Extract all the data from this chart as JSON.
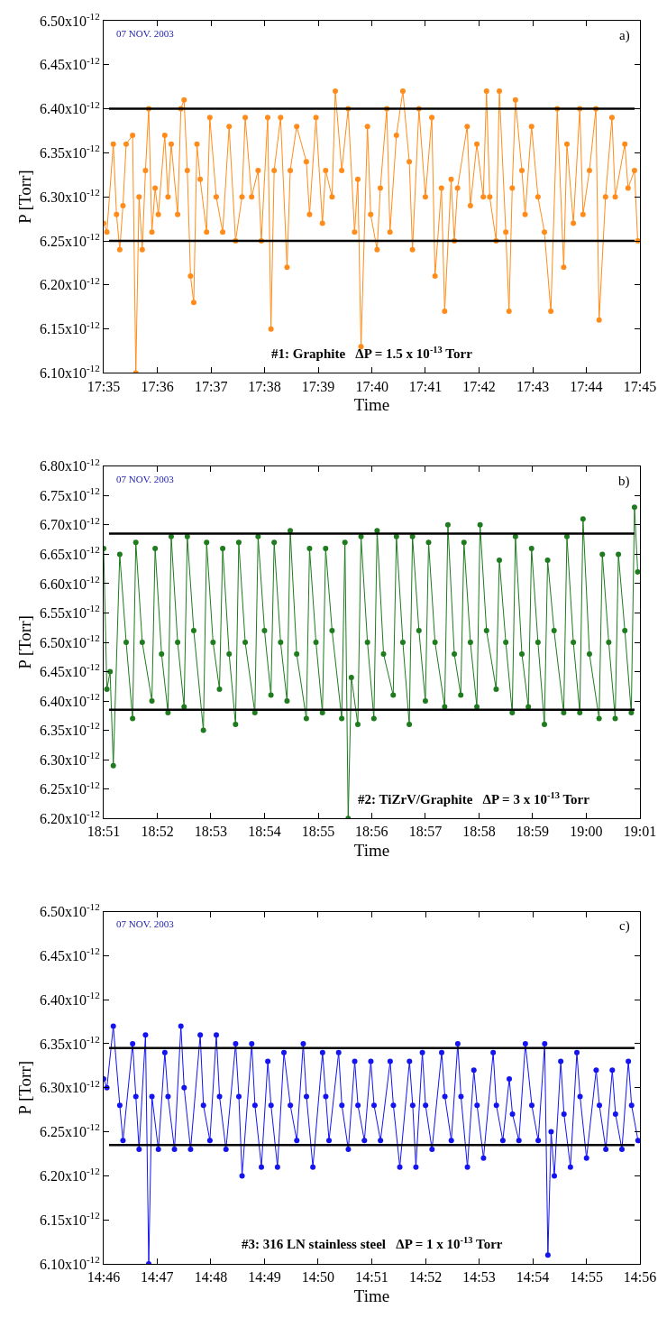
{
  "chart_data": [
    {
      "type": "line",
      "xlabel": "Time",
      "ylabel": "P [Torr]",
      "marker": "circle",
      "line_style": "solid",
      "annotations": [
        "07 NOV. 2003",
        "a)",
        "#1: Graphite   ΔP = 1.5 x 10$^{-13}$ Torr"
      ],
      "xlim": [
        17.5833,
        17.75
      ],
      "xticks": [
        {
          "value": 17.5833,
          "label": "17:35"
        },
        {
          "value": 17.6,
          "label": "17:36"
        },
        {
          "value": 17.6167,
          "label": "17:37"
        },
        {
          "value": 17.6333,
          "label": "17:38"
        },
        {
          "value": 17.65,
          "label": "17:39"
        },
        {
          "value": 17.6667,
          "label": "17:40"
        },
        {
          "value": 17.6833,
          "label": "17:41"
        },
        {
          "value": 17.7,
          "label": "17:42"
        },
        {
          "value": 17.7167,
          "label": "17:43"
        },
        {
          "value": 17.7333,
          "label": "17:44"
        },
        {
          "value": 17.75,
          "label": "17:45"
        }
      ],
      "ylim": [
        6.1e-12,
        6.5e-12
      ],
      "yticks": [
        {
          "value": 6.1e-12,
          "label": "6.10x10$^{-12}$"
        },
        {
          "value": 6.15e-12,
          "label": "6.15x10$^{-12}$"
        },
        {
          "value": 6.2e-12,
          "label": "6.20x10$^{-12}$"
        },
        {
          "value": 6.25e-12,
          "label": "6.25x10$^{-12}$"
        },
        {
          "value": 6.3e-12,
          "label": "6.30x10$^{-12}$"
        },
        {
          "value": 6.35e-12,
          "label": "6.35x10$^{-12}$"
        },
        {
          "value": 6.4e-12,
          "label": "6.40x10$^{-12}$"
        },
        {
          "value": 6.45e-12,
          "label": "6.45x10$^{-12}$"
        },
        {
          "value": 6.5e-12,
          "label": "6.50x10$^{-12}$"
        }
      ],
      "ref_lines": [
        {
          "axis": "y",
          "value": 6.4e-12,
          "color": "#000000"
        },
        {
          "axis": "y",
          "value": 6.25e-12,
          "color": "#000000"
        }
      ],
      "series": [
        {
          "color": "#ff8c1a",
          "x": [
            17.5833,
            17.5843,
            17.5863,
            17.5873,
            17.5883,
            17.5893,
            17.5903,
            17.5923,
            17.5933,
            17.5943,
            17.5953,
            17.5963,
            17.5973,
            17.5983,
            17.5993,
            17.6003,
            17.6023,
            17.6033,
            17.6043,
            17.6063,
            17.6073,
            17.6083,
            17.6093,
            17.6103,
            17.6113,
            17.6123,
            17.6133,
            17.6153,
            17.6163,
            17.6183,
            17.6203,
            17.6223,
            17.6243,
            17.6263,
            17.6273,
            17.6293,
            17.6313,
            17.6323,
            17.6343,
            17.6353,
            17.6363,
            17.6383,
            17.6403,
            17.6413,
            17.6433,
            17.6463,
            17.6473,
            17.6493,
            17.6513,
            17.6523,
            17.6543,
            17.6553,
            17.6573,
            17.6593,
            17.6613,
            17.6623,
            17.6633,
            17.6653,
            17.6663,
            17.6683,
            17.6693,
            17.6713,
            17.6723,
            17.6743,
            17.6763,
            17.6783,
            17.6793,
            17.6813,
            17.6833,
            17.6853,
            17.6863,
            17.6883,
            17.6893,
            17.6913,
            17.6923,
            17.6933,
            17.6963,
            17.6973,
            17.6993,
            17.7013,
            17.7023,
            17.7033,
            17.7053,
            17.7063,
            17.7083,
            17.7093,
            17.7103,
            17.7113,
            17.7133,
            17.7143,
            17.7163,
            17.7183,
            17.7203,
            17.7223,
            17.7243,
            17.7263,
            17.7273,
            17.7293,
            17.7313,
            17.7323,
            17.7343,
            17.7363,
            17.7373,
            17.7393,
            17.7413,
            17.7423,
            17.7453,
            17.7463,
            17.7483,
            17.7493
          ],
          "values": [
            6.27e-12,
            6.26e-12,
            6.36e-12,
            6.28e-12,
            6.24e-12,
            6.29e-12,
            6.36e-12,
            6.37e-12,
            6.1e-12,
            6.3e-12,
            6.24e-12,
            6.33e-12,
            6.4e-12,
            6.26e-12,
            6.31e-12,
            6.28e-12,
            6.37e-12,
            6.3e-12,
            6.36e-12,
            6.28e-12,
            6.4e-12,
            6.41e-12,
            6.33e-12,
            6.21e-12,
            6.18e-12,
            6.36e-12,
            6.32e-12,
            6.26e-12,
            6.39e-12,
            6.3e-12,
            6.26e-12,
            6.38e-12,
            6.25e-12,
            6.3e-12,
            6.39e-12,
            6.3e-12,
            6.33e-12,
            6.25e-12,
            6.39e-12,
            6.15e-12,
            6.33e-12,
            6.39e-12,
            6.22e-12,
            6.33e-12,
            6.38e-12,
            6.34e-12,
            6.28e-12,
            6.39e-12,
            6.27e-12,
            6.33e-12,
            6.3e-12,
            6.42e-12,
            6.33e-12,
            6.4e-12,
            6.26e-12,
            6.32e-12,
            6.13e-12,
            6.38e-12,
            6.28e-12,
            6.24e-12,
            6.31e-12,
            6.4e-12,
            6.26e-12,
            6.37e-12,
            6.42e-12,
            6.34e-12,
            6.24e-12,
            6.4e-12,
            6.3e-12,
            6.39e-12,
            6.21e-12,
            6.31e-12,
            6.17e-12,
            6.32e-12,
            6.25e-12,
            6.31e-12,
            6.38e-12,
            6.29e-12,
            6.36e-12,
            6.3e-12,
            6.42e-12,
            6.3e-12,
            6.25e-12,
            6.42e-12,
            6.26e-12,
            6.17e-12,
            6.31e-12,
            6.41e-12,
            6.33e-12,
            6.28e-12,
            6.38e-12,
            6.3e-12,
            6.26e-12,
            6.17e-12,
            6.4e-12,
            6.22e-12,
            6.36e-12,
            6.27e-12,
            6.4e-12,
            6.28e-12,
            6.33e-12,
            6.4e-12,
            6.16e-12,
            6.3e-12,
            6.39e-12,
            6.3e-12,
            6.36e-12,
            6.31e-12,
            6.33e-12,
            6.25e-12
          ]
        }
      ]
    },
    {
      "type": "line",
      "xlabel": "Time",
      "ylabel": "P [Torr]",
      "marker": "circle",
      "line_style": "solid",
      "annotations": [
        "07 NOV. 2003",
        "b)",
        "#2: TiZrV/Graphite   ΔP = 3 x 10$^{-13}$ Torr"
      ],
      "xlim": [
        18.85,
        19.0167
      ],
      "xticks": [
        {
          "value": 18.85,
          "label": "18:51"
        },
        {
          "value": 18.8667,
          "label": "18:52"
        },
        {
          "value": 18.8833,
          "label": "18:53"
        },
        {
          "value": 18.9,
          "label": "18:54"
        },
        {
          "value": 18.9167,
          "label": "18:55"
        },
        {
          "value": 18.9333,
          "label": "18:56"
        },
        {
          "value": 18.95,
          "label": "18:57"
        },
        {
          "value": 18.9667,
          "label": "18:58"
        },
        {
          "value": 18.9833,
          "label": "18:59"
        },
        {
          "value": 19.0,
          "label": "19:00"
        },
        {
          "value": 19.0167,
          "label": "19:01"
        }
      ],
      "ylim": [
        6.2e-12,
        6.8e-12
      ],
      "yticks": [
        {
          "value": 6.2e-12,
          "label": "6.20x10$^{-12}$"
        },
        {
          "value": 6.25e-12,
          "label": "6.25x10$^{-12}$"
        },
        {
          "value": 6.3e-12,
          "label": "6.30x10$^{-12}$"
        },
        {
          "value": 6.35e-12,
          "label": "6.35x10$^{-12}$"
        },
        {
          "value": 6.4e-12,
          "label": "6.40x10$^{-12}$"
        },
        {
          "value": 6.45e-12,
          "label": "6.45x10$^{-12}$"
        },
        {
          "value": 6.5e-12,
          "label": "6.50x10$^{-12}$"
        },
        {
          "value": 6.55e-12,
          "label": "6.55x10$^{-12}$"
        },
        {
          "value": 6.6e-12,
          "label": "6.60x10$^{-12}$"
        },
        {
          "value": 6.65e-12,
          "label": "6.65x10$^{-12}$"
        },
        {
          "value": 6.7e-12,
          "label": "6.70x10$^{-12}$"
        },
        {
          "value": 6.75e-12,
          "label": "6.75x10$^{-12}$"
        },
        {
          "value": 6.8e-12,
          "label": "6.80x10$^{-12}$"
        }
      ],
      "ref_lines": [
        {
          "axis": "y",
          "value": 6.685e-12,
          "color": "#000000"
        },
        {
          "axis": "y",
          "value": 6.385e-12,
          "color": "#000000"
        }
      ],
      "series": [
        {
          "color": "#1e7b1e",
          "x": [
            18.85,
            18.851,
            18.852,
            18.853,
            18.855,
            18.857,
            18.859,
            18.86,
            18.862,
            18.865,
            18.866,
            18.868,
            18.87,
            18.871,
            18.873,
            18.875,
            18.876,
            18.878,
            18.881,
            18.882,
            18.884,
            18.886,
            18.887,
            18.889,
            18.891,
            18.892,
            18.894,
            18.897,
            18.898,
            18.9,
            18.902,
            18.903,
            18.905,
            18.907,
            18.908,
            18.91,
            18.913,
            18.914,
            18.916,
            18.918,
            18.919,
            18.921,
            18.924,
            18.925,
            18.926,
            18.927,
            18.929,
            18.93,
            18.932,
            18.934,
            18.935,
            18.937,
            18.94,
            18.941,
            18.943,
            18.945,
            18.946,
            18.948,
            18.95,
            18.951,
            18.953,
            18.956,
            18.957,
            18.959,
            18.961,
            18.962,
            18.964,
            18.966,
            18.967,
            18.969,
            18.972,
            18.973,
            18.975,
            18.977,
            18.978,
            18.98,
            18.982,
            18.983,
            18.985,
            18.987,
            18.988,
            18.99,
            18.993,
            18.994,
            18.996,
            18.998,
            18.999,
            19.001,
            19.004,
            19.005,
            19.007,
            19.009,
            19.01,
            19.012,
            19.014,
            19.015,
            19.016
          ],
          "values": [
            6.66e-12,
            6.42e-12,
            6.45e-12,
            6.29e-12,
            6.65e-12,
            6.5e-12,
            6.37e-12,
            6.67e-12,
            6.5e-12,
            6.4e-12,
            6.66e-12,
            6.48e-12,
            6.38e-12,
            6.68e-12,
            6.5e-12,
            6.39e-12,
            6.68e-12,
            6.52e-12,
            6.35e-12,
            6.67e-12,
            6.5e-12,
            6.42e-12,
            6.66e-12,
            6.48e-12,
            6.36e-12,
            6.67e-12,
            6.5e-12,
            6.38e-12,
            6.68e-12,
            6.52e-12,
            6.41e-12,
            6.67e-12,
            6.5e-12,
            6.4e-12,
            6.69e-12,
            6.48e-12,
            6.37e-12,
            6.66e-12,
            6.5e-12,
            6.38e-12,
            6.66e-12,
            6.52e-12,
            6.37e-12,
            6.67e-12,
            6.2e-12,
            6.44e-12,
            6.36e-12,
            6.68e-12,
            6.5e-12,
            6.37e-12,
            6.69e-12,
            6.48e-12,
            6.41e-12,
            6.68e-12,
            6.5e-12,
            6.36e-12,
            6.68e-12,
            6.52e-12,
            6.4e-12,
            6.67e-12,
            6.5e-12,
            6.39e-12,
            6.7e-12,
            6.48e-12,
            6.41e-12,
            6.67e-12,
            6.5e-12,
            6.39e-12,
            6.7e-12,
            6.52e-12,
            6.42e-12,
            6.64e-12,
            6.5e-12,
            6.38e-12,
            6.68e-12,
            6.48e-12,
            6.39e-12,
            6.66e-12,
            6.5e-12,
            6.36e-12,
            6.64e-12,
            6.52e-12,
            6.38e-12,
            6.68e-12,
            6.5e-12,
            6.38e-12,
            6.71e-12,
            6.48e-12,
            6.37e-12,
            6.65e-12,
            6.5e-12,
            6.37e-12,
            6.65e-12,
            6.52e-12,
            6.38e-12,
            6.73e-12,
            6.62e-12
          ]
        }
      ]
    },
    {
      "type": "line",
      "xlabel": "Time",
      "ylabel": "P [Torr]",
      "marker": "circle",
      "line_style": "solid",
      "annotations": [
        "07 NOV. 2003",
        "c)",
        "#3: 316 LN stainless steel   ΔP = 1 x 10$^{-13}$ Torr"
      ],
      "xlim": [
        14.7667,
        14.9333
      ],
      "xticks": [
        {
          "value": 14.7667,
          "label": "14:46"
        },
        {
          "value": 14.7833,
          "label": "14:47"
        },
        {
          "value": 14.8,
          "label": "14:48"
        },
        {
          "value": 14.8167,
          "label": "14:49"
        },
        {
          "value": 14.8333,
          "label": "14:50"
        },
        {
          "value": 14.85,
          "label": "14:51"
        },
        {
          "value": 14.8667,
          "label": "14:52"
        },
        {
          "value": 14.8833,
          "label": "14:53"
        },
        {
          "value": 14.9,
          "label": "14:54"
        },
        {
          "value": 14.9167,
          "label": "14:55"
        },
        {
          "value": 14.9333,
          "label": "14:56"
        }
      ],
      "ylim": [
        6.1e-12,
        6.5e-12
      ],
      "yticks": [
        {
          "value": 6.1e-12,
          "label": "6.10x10$^{-12}$"
        },
        {
          "value": 6.15e-12,
          "label": "6.15x10$^{-12}$"
        },
        {
          "value": 6.2e-12,
          "label": "6.20x10$^{-12}$"
        },
        {
          "value": 6.25e-12,
          "label": "6.25x10$^{-12}$"
        },
        {
          "value": 6.3e-12,
          "label": "6.30x10$^{-12}$"
        },
        {
          "value": 6.35e-12,
          "label": "6.35x10$^{-12}$"
        },
        {
          "value": 6.4e-12,
          "label": "6.40x10$^{-12}$"
        },
        {
          "value": 6.45e-12,
          "label": "6.45x10$^{-12}$"
        },
        {
          "value": 6.5e-12,
          "label": "6.50x10$^{-12}$"
        }
      ],
      "ref_lines": [
        {
          "axis": "y",
          "value": 6.345e-12,
          "color": "#000000"
        },
        {
          "axis": "y",
          "value": 6.235e-12,
          "color": "#000000"
        }
      ],
      "series": [
        {
          "color": "#1414f0",
          "x": [
            14.7667,
            14.7677,
            14.7697,
            14.7717,
            14.7727,
            14.7757,
            14.7767,
            14.7777,
            14.7797,
            14.7807,
            14.7817,
            14.7837,
            14.7857,
            14.7867,
            14.7887,
            14.7907,
            14.7917,
            14.7937,
            14.7967,
            14.7977,
            14.7997,
            14.8017,
            14.8027,
            14.8047,
            14.8077,
            14.8087,
            14.8097,
            14.8127,
            14.8137,
            14.8157,
            14.8177,
            14.8187,
            14.8207,
            14.8227,
            14.8247,
            14.8267,
            14.8287,
            14.8297,
            14.8317,
            14.8347,
            14.8357,
            14.8367,
            14.8397,
            14.8407,
            14.8427,
            14.8447,
            14.8457,
            14.8477,
            14.8497,
            14.8507,
            14.8527,
            14.8557,
            14.8567,
            14.8587,
            14.8617,
            14.8627,
            14.8637,
            14.8657,
            14.8667,
            14.8687,
            14.8717,
            14.8727,
            14.8747,
            14.8767,
            14.8777,
            14.8797,
            14.8817,
            14.8827,
            14.8847,
            14.8877,
            14.8887,
            14.8907,
            14.8927,
            14.8937,
            14.8957,
            14.8977,
            14.8997,
            14.9017,
            14.9037,
            14.9047,
            14.9057,
            14.9067,
            14.9087,
            14.9097,
            14.9117,
            14.9137,
            14.9147,
            14.9167,
            14.9197,
            14.9207,
            14.9227,
            14.9247,
            14.9257,
            14.9277,
            14.9297,
            14.9307,
            14.9327
          ],
          "values": [
            6.31e-12,
            6.3e-12,
            6.37e-12,
            6.28e-12,
            6.24e-12,
            6.35e-12,
            6.29e-12,
            6.23e-12,
            6.36e-12,
            6.1e-12,
            6.29e-12,
            6.23e-12,
            6.34e-12,
            6.29e-12,
            6.23e-12,
            6.37e-12,
            6.3e-12,
            6.23e-12,
            6.36e-12,
            6.28e-12,
            6.24e-12,
            6.36e-12,
            6.29e-12,
            6.23e-12,
            6.35e-12,
            6.29e-12,
            6.2e-12,
            6.35e-12,
            6.28e-12,
            6.21e-12,
            6.33e-12,
            6.28e-12,
            6.21e-12,
            6.34e-12,
            6.28e-12,
            6.24e-12,
            6.35e-12,
            6.29e-12,
            6.21e-12,
            6.34e-12,
            6.29e-12,
            6.24e-12,
            6.34e-12,
            6.28e-12,
            6.23e-12,
            6.33e-12,
            6.28e-12,
            6.24e-12,
            6.33e-12,
            6.28e-12,
            6.24e-12,
            6.33e-12,
            6.28e-12,
            6.21e-12,
            6.33e-12,
            6.28e-12,
            6.21e-12,
            6.34e-12,
            6.28e-12,
            6.23e-12,
            6.34e-12,
            6.29e-12,
            6.24e-12,
            6.35e-12,
            6.29e-12,
            6.21e-12,
            6.32e-12,
            6.28e-12,
            6.22e-12,
            6.34e-12,
            6.28e-12,
            6.24e-12,
            6.31e-12,
            6.27e-12,
            6.24e-12,
            6.35e-12,
            6.28e-12,
            6.24e-12,
            6.35e-12,
            6.11e-12,
            6.25e-12,
            6.2e-12,
            6.33e-12,
            6.27e-12,
            6.21e-12,
            6.34e-12,
            6.29e-12,
            6.22e-12,
            6.32e-12,
            6.28e-12,
            6.23e-12,
            6.32e-12,
            6.27e-12,
            6.23e-12,
            6.33e-12,
            6.28e-12,
            6.24e-12
          ]
        }
      ]
    }
  ]
}
